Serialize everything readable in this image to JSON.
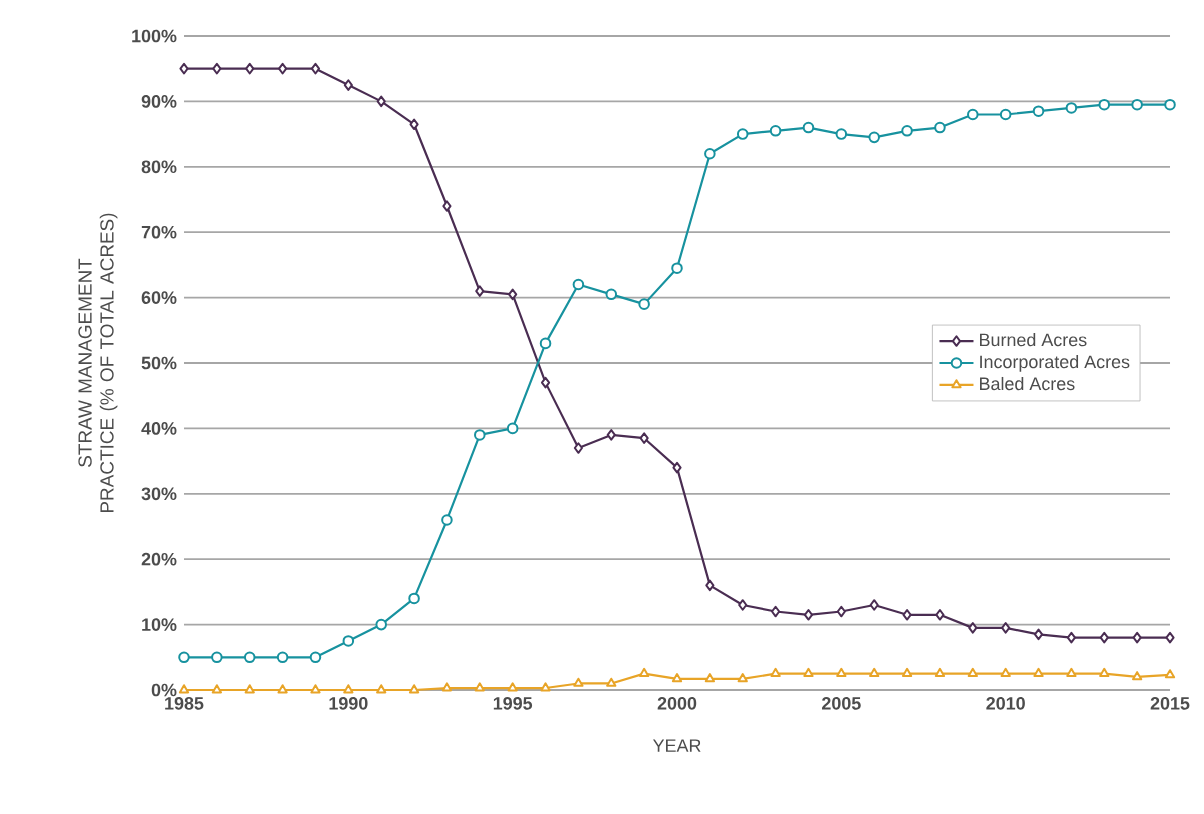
{
  "chart_data": {
    "type": "line",
    "xlabel": "YEAR",
    "ylabel": "STRAW MANAGEMENT PRACTICE (% OF TOTAL ACRES)",
    "x": [
      1985,
      1986,
      1987,
      1988,
      1989,
      1990,
      1991,
      1992,
      1993,
      1994,
      1995,
      1996,
      1997,
      1998,
      1999,
      2000,
      2001,
      2002,
      2003,
      2004,
      2005,
      2006,
      2007,
      2008,
      2009,
      2010,
      2011,
      2012,
      2013,
      2014,
      2015
    ],
    "series": [
      {
        "name": "Burned Acres",
        "color": "#4a2d52",
        "marker": "diamond",
        "values": [
          95,
          95,
          95,
          95,
          95,
          92.5,
          90,
          86.5,
          74,
          61,
          60.5,
          47,
          37,
          39,
          38.5,
          34,
          16,
          13,
          12,
          11.5,
          12,
          13,
          11.5,
          11.5,
          9.5,
          9.5,
          8.5,
          8,
          8,
          8,
          8
        ]
      },
      {
        "name": "Incorporated Acres",
        "color": "#17929f",
        "marker": "circle",
        "values": [
          5,
          5,
          5,
          5,
          5,
          7.5,
          10,
          14,
          26,
          39,
          40,
          53,
          62,
          60.5,
          59,
          64.5,
          82,
          85,
          85.5,
          86,
          85,
          84.5,
          85.5,
          86,
          88,
          88,
          88.5,
          89,
          89.5,
          89.5,
          89.5
        ]
      },
      {
        "name": "Baled Acres",
        "color": "#e8a427",
        "marker": "triangle",
        "values": [
          0,
          0,
          0,
          0,
          0,
          0,
          0,
          0,
          0.3,
          0.3,
          0.3,
          0.3,
          1,
          1,
          2.5,
          1.7,
          1.7,
          1.7,
          2.5,
          2.5,
          2.5,
          2.5,
          2.5,
          2.5,
          2.5,
          2.5,
          2.5,
          2.5,
          2.5,
          2,
          2.3
        ]
      }
    ],
    "xlim": [
      1985,
      2015
    ],
    "xticks": [
      1985,
      1990,
      1995,
      2000,
      2005,
      2010,
      2015
    ],
    "ylim": [
      0,
      100
    ],
    "yticks": [
      {
        "value": 0,
        "label": "0%"
      },
      {
        "value": 10,
        "label": "10%"
      },
      {
        "value": 20,
        "label": "20%"
      },
      {
        "value": 30,
        "label": "30%"
      },
      {
        "value": 40,
        "label": "40%"
      },
      {
        "value": 50,
        "label": "50%"
      },
      {
        "value": 60,
        "label": "60%"
      },
      {
        "value": 70,
        "label": "70%"
      },
      {
        "value": 80,
        "label": "80%"
      },
      {
        "value": 90,
        "label": "90%"
      },
      {
        "value": 100,
        "label": "100%"
      }
    ],
    "grid": "y",
    "legend": "right",
    "line_style": "solid"
  }
}
